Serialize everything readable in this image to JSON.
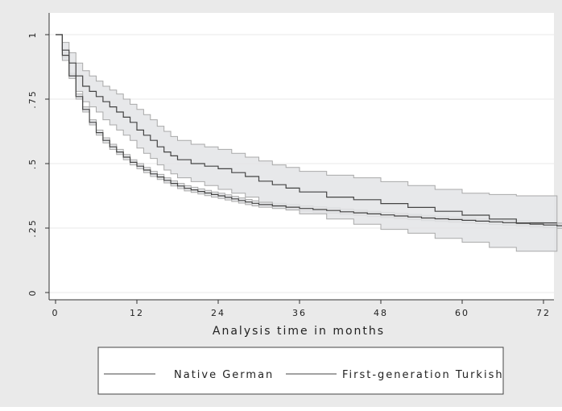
{
  "colors": {
    "outer_background": "#eaeaea",
    "plot_background": "#ffffff",
    "band_fill": "#e3e4e6",
    "band_edge": "#a9a9a9",
    "line": "#444444",
    "grid": "#e8e8e8"
  },
  "chart_data": {
    "type": "line",
    "subtype": "kaplan-meier survival estimate with confidence bands",
    "xlabel": "Analysis time in months",
    "ylabel": "",
    "xlim": [
      0,
      78
    ],
    "ylim": [
      0,
      1
    ],
    "xticks": [
      0,
      12,
      24,
      36,
      48,
      60,
      72
    ],
    "xtick_labels": [
      "0",
      "12",
      "24",
      "36",
      "48",
      "60",
      "72"
    ],
    "yticks": [
      0,
      0.25,
      0.5,
      0.75,
      1
    ],
    "ytick_labels": [
      "0",
      ".25",
      ".5",
      ".75",
      "1"
    ],
    "grid": "horizontal",
    "legend_position": "bottom",
    "series": [
      {
        "name": "Native German",
        "x": [
          0,
          1,
          2,
          3,
          4,
          5,
          6,
          7,
          8,
          9,
          10,
          11,
          12,
          13,
          14,
          15,
          16,
          17,
          18,
          19,
          20,
          21,
          22,
          23,
          24,
          25,
          26,
          27,
          28,
          29,
          30,
          32,
          34,
          36,
          38,
          40,
          42,
          44,
          46,
          48,
          50,
          52,
          54,
          56,
          58,
          60,
          62,
          64,
          66,
          68,
          70,
          72,
          74,
          76,
          77
        ],
        "y": [
          1,
          0.92,
          0.84,
          0.76,
          0.71,
          0.66,
          0.62,
          0.59,
          0.565,
          0.545,
          0.525,
          0.505,
          0.49,
          0.475,
          0.46,
          0.448,
          0.435,
          0.423,
          0.413,
          0.404,
          0.398,
          0.392,
          0.386,
          0.38,
          0.375,
          0.369,
          0.363,
          0.357,
          0.351,
          0.346,
          0.341,
          0.336,
          0.331,
          0.326,
          0.322,
          0.318,
          0.313,
          0.309,
          0.305,
          0.301,
          0.297,
          0.293,
          0.289,
          0.286,
          0.283,
          0.28,
          0.277,
          0.274,
          0.271,
          0.268,
          0.265,
          0.262,
          0.259,
          0.255,
          0.25
        ],
        "ci_lower": [
          1,
          0.91,
          0.83,
          0.75,
          0.7,
          0.65,
          0.61,
          0.58,
          0.555,
          0.535,
          0.515,
          0.495,
          0.48,
          0.465,
          0.45,
          0.438,
          0.425,
          0.413,
          0.403,
          0.394,
          0.388,
          0.382,
          0.376,
          0.37,
          0.365,
          0.359,
          0.353,
          0.347,
          0.341,
          0.336,
          0.331,
          0.326,
          0.321,
          0.316,
          0.312,
          0.308,
          0.303,
          0.299,
          0.295,
          0.291,
          0.287,
          0.283,
          0.279,
          0.276,
          0.273,
          0.27,
          0.267,
          0.264,
          0.261,
          0.258,
          0.255,
          0.252,
          0.249,
          0.245,
          0.24
        ],
        "ci_upper": [
          1,
          0.93,
          0.85,
          0.77,
          0.72,
          0.67,
          0.63,
          0.6,
          0.575,
          0.555,
          0.535,
          0.515,
          0.5,
          0.485,
          0.47,
          0.458,
          0.445,
          0.433,
          0.423,
          0.414,
          0.408,
          0.402,
          0.396,
          0.39,
          0.385,
          0.379,
          0.373,
          0.367,
          0.361,
          0.356,
          0.351,
          0.346,
          0.341,
          0.336,
          0.332,
          0.328,
          0.323,
          0.319,
          0.315,
          0.311,
          0.307,
          0.303,
          0.299,
          0.296,
          0.293,
          0.29,
          0.287,
          0.284,
          0.281,
          0.278,
          0.275,
          0.272,
          0.269,
          0.265,
          0.26
        ]
      },
      {
        "name": "First-generation Turkish",
        "x": [
          0,
          1,
          2,
          3,
          4,
          5,
          6,
          7,
          8,
          9,
          10,
          11,
          12,
          13,
          14,
          15,
          16,
          17,
          18,
          20,
          22,
          24,
          26,
          28,
          30,
          32,
          34,
          36,
          40,
          44,
          48,
          52,
          56,
          60,
          64,
          68,
          74
        ],
        "y": [
          1,
          0.94,
          0.89,
          0.84,
          0.8,
          0.78,
          0.76,
          0.74,
          0.72,
          0.7,
          0.68,
          0.66,
          0.63,
          0.61,
          0.59,
          0.565,
          0.545,
          0.53,
          0.515,
          0.5,
          0.49,
          0.48,
          0.465,
          0.45,
          0.432,
          0.418,
          0.405,
          0.39,
          0.37,
          0.36,
          0.345,
          0.33,
          0.315,
          0.3,
          0.285,
          0.27,
          0.27
        ],
        "ci_lower": [
          1,
          0.9,
          0.84,
          0.78,
          0.74,
          0.72,
          0.7,
          0.67,
          0.65,
          0.63,
          0.61,
          0.59,
          0.56,
          0.54,
          0.52,
          0.495,
          0.475,
          0.46,
          0.445,
          0.43,
          0.415,
          0.4,
          0.385,
          0.37,
          0.35,
          0.335,
          0.32,
          0.305,
          0.285,
          0.265,
          0.245,
          0.23,
          0.21,
          0.195,
          0.175,
          0.16,
          0.16
        ],
        "ci_upper": [
          1,
          0.97,
          0.93,
          0.89,
          0.86,
          0.84,
          0.82,
          0.8,
          0.785,
          0.77,
          0.75,
          0.73,
          0.71,
          0.69,
          0.67,
          0.645,
          0.625,
          0.605,
          0.59,
          0.575,
          0.565,
          0.555,
          0.54,
          0.525,
          0.51,
          0.495,
          0.485,
          0.47,
          0.455,
          0.445,
          0.43,
          0.415,
          0.4,
          0.385,
          0.38,
          0.375,
          0.375
        ]
      }
    ]
  }
}
